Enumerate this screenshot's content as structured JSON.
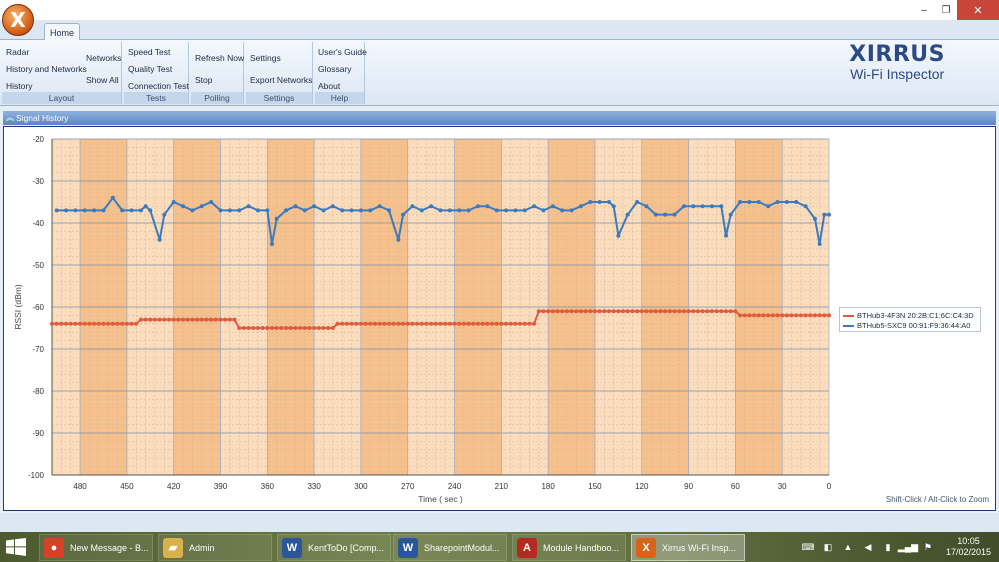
{
  "window": {
    "controls": {
      "minimize": "–",
      "restore": "❐",
      "close": "✕"
    }
  },
  "tabs": [
    {
      "label": "Home"
    }
  ],
  "ribbon": {
    "layout": {
      "items": [
        "Radar",
        "History and Networks",
        "History",
        "Networks",
        "Show All"
      ],
      "caption": "Layout"
    },
    "tests": {
      "items": [
        "Speed Test",
        "Quality Test",
        "Connection Test"
      ],
      "caption": "Tests"
    },
    "polling": {
      "items": [
        "Refresh Now",
        "Stop"
      ],
      "caption": "Polling"
    },
    "settings": {
      "items": [
        "Settings",
        "Export Networks"
      ],
      "caption": "Settings"
    },
    "help": {
      "items": [
        "User's Guide",
        "Glossary",
        "About"
      ],
      "caption": "Help"
    }
  },
  "brand": {
    "name": "XIRRUS",
    "sub": "Wi-Fi Inspector"
  },
  "panel": {
    "title": "Signal History",
    "zoom_hint": "Shift-Click / Alt-Click to Zoom"
  },
  "chart_data": {
    "type": "line",
    "xlabel": "Time ( sec )",
    "ylabel": "RSSI (dBm)",
    "xlim": [
      498,
      0
    ],
    "ylim": [
      -100,
      -20
    ],
    "x_ticks": [
      480,
      450,
      420,
      390,
      360,
      330,
      300,
      270,
      240,
      210,
      180,
      150,
      120,
      90,
      60,
      30,
      0
    ],
    "y_ticks": [
      -20,
      -30,
      -40,
      -50,
      -60,
      -70,
      -80,
      -90,
      -100
    ],
    "grid": true,
    "legend_position": "right",
    "colors": {
      "blue_series": "#3a7bbf",
      "red_series": "#e05c3e",
      "band_dark": "#f5c08c",
      "band_light": "#fbdcbc"
    },
    "series": [
      {
        "name": "BTHub3-4F3N 20:2B:C1:6C:C4:3D",
        "color": "#e05c3e",
        "points": [
          [
            498,
            -64
          ],
          [
            444,
            -64
          ],
          [
            441,
            -63
          ],
          [
            381,
            -63
          ],
          [
            378,
            -65
          ],
          [
            318,
            -65
          ],
          [
            315,
            -64
          ],
          [
            189,
            -64
          ],
          [
            186,
            -61
          ],
          [
            60,
            -61
          ],
          [
            57,
            -62
          ],
          [
            0,
            -62
          ]
        ]
      },
      {
        "name": "BTHub5-SXC9 00:91:F9:36:44:A0",
        "color": "#3a7bbf",
        "points": [
          [
            495,
            -37
          ],
          [
            489,
            -37
          ],
          [
            483,
            -37
          ],
          [
            477,
            -37
          ],
          [
            471,
            -37
          ],
          [
            465,
            -37
          ],
          [
            459,
            -34
          ],
          [
            453,
            -37
          ],
          [
            447,
            -37
          ],
          [
            441,
            -37
          ],
          [
            438,
            -36
          ],
          [
            435,
            -37
          ],
          [
            429,
            -44
          ],
          [
            426,
            -38
          ],
          [
            420,
            -35
          ],
          [
            414,
            -36
          ],
          [
            408,
            -37
          ],
          [
            402,
            -36
          ],
          [
            396,
            -35
          ],
          [
            390,
            -37
          ],
          [
            384,
            -37
          ],
          [
            378,
            -37
          ],
          [
            372,
            -36
          ],
          [
            366,
            -37
          ],
          [
            360,
            -37
          ],
          [
            357,
            -45
          ],
          [
            354,
            -39
          ],
          [
            348,
            -37
          ],
          [
            342,
            -36
          ],
          [
            336,
            -37
          ],
          [
            330,
            -36
          ],
          [
            324,
            -37
          ],
          [
            318,
            -36
          ],
          [
            312,
            -37
          ],
          [
            306,
            -37
          ],
          [
            300,
            -37
          ],
          [
            294,
            -37
          ],
          [
            288,
            -36
          ],
          [
            282,
            -37
          ],
          [
            276,
            -44
          ],
          [
            273,
            -38
          ],
          [
            267,
            -36
          ],
          [
            261,
            -37
          ],
          [
            255,
            -36
          ],
          [
            249,
            -37
          ],
          [
            243,
            -37
          ],
          [
            237,
            -37
          ],
          [
            231,
            -37
          ],
          [
            225,
            -36
          ],
          [
            219,
            -36
          ],
          [
            213,
            -37
          ],
          [
            207,
            -37
          ],
          [
            201,
            -37
          ],
          [
            195,
            -37
          ],
          [
            189,
            -36
          ],
          [
            183,
            -37
          ],
          [
            177,
            -36
          ],
          [
            171,
            -37
          ],
          [
            165,
            -37
          ],
          [
            159,
            -36
          ],
          [
            153,
            -35
          ],
          [
            147,
            -35
          ],
          [
            141,
            -35
          ],
          [
            138,
            -36
          ],
          [
            135,
            -43
          ],
          [
            129,
            -38
          ],
          [
            123,
            -35
          ],
          [
            117,
            -36
          ],
          [
            111,
            -38
          ],
          [
            105,
            -38
          ],
          [
            99,
            -38
          ],
          [
            93,
            -36
          ],
          [
            87,
            -36
          ],
          [
            81,
            -36
          ],
          [
            75,
            -36
          ],
          [
            69,
            -36
          ],
          [
            66,
            -43
          ],
          [
            63,
            -38
          ],
          [
            57,
            -35
          ],
          [
            51,
            -35
          ],
          [
            45,
            -35
          ],
          [
            39,
            -36
          ],
          [
            33,
            -35
          ],
          [
            27,
            -35
          ],
          [
            21,
            -35
          ],
          [
            15,
            -36
          ],
          [
            9,
            -39
          ],
          [
            6,
            -45
          ],
          [
            3,
            -38
          ],
          [
            0,
            -38
          ]
        ]
      }
    ]
  },
  "taskbar": {
    "items": [
      {
        "label": "New Message - B...",
        "icon": "chrome-icon",
        "color": "#d9402a"
      },
      {
        "label": "Admin",
        "icon": "folder-icon",
        "color": "#d8b14a"
      },
      {
        "label": "KentToDo [Comp...",
        "icon": "word-icon",
        "color": "#2b579a"
      },
      {
        "label": "SharepointModul...",
        "icon": "word-icon",
        "color": "#2b579a"
      },
      {
        "label": "Module Handboo...",
        "icon": "pdf-icon",
        "color": "#b32b20"
      },
      {
        "label": "Xirrus Wi-Fi Insp...",
        "icon": "xirrus-icon",
        "color": "#d8631b"
      }
    ],
    "clock": {
      "time": "10:05",
      "date": "17/02/2015"
    }
  }
}
